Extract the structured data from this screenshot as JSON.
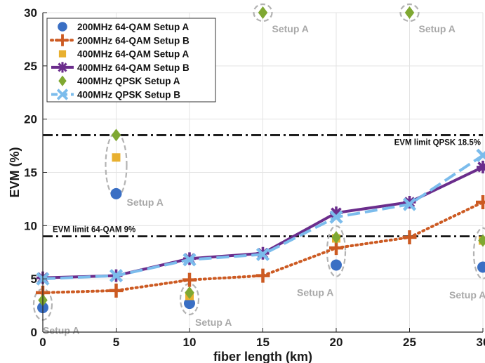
{
  "chart_data": {
    "type": "line",
    "title": "",
    "xlabel": "fiber length (km)",
    "ylabel": "EVM (%)",
    "xlim": [
      0,
      30
    ],
    "ylim": [
      0,
      30
    ],
    "xticks": [
      0,
      5,
      10,
      15,
      20,
      25,
      30
    ],
    "yticks": [
      0,
      5,
      10,
      15,
      20,
      25,
      30
    ],
    "xtick_labels": [
      "0",
      "5",
      "10",
      "15",
      "20",
      "25",
      "30"
    ],
    "ytick_labels": [
      "0",
      "5",
      "10",
      "15",
      "20",
      "25",
      "30"
    ],
    "grid": true,
    "legend_position": "top-left",
    "series": [
      {
        "name": "200MHz 64-QAM Setup A",
        "marker": "circle",
        "line": "none",
        "color": "#3a6fc4",
        "x": [
          0,
          5,
          10,
          20,
          30
        ],
        "y": [
          2.3,
          13.0,
          2.7,
          6.3,
          6.1
        ]
      },
      {
        "name": "200MHz 64-QAM Setup B",
        "marker": "plus",
        "line": "dotted",
        "color": "#cc5a22",
        "x": [
          0,
          5,
          10,
          15,
          20,
          25,
          30
        ],
        "y": [
          3.7,
          3.9,
          4.9,
          5.3,
          7.9,
          8.9,
          12.2
        ]
      },
      {
        "name": "400MHz 64-QAM Setup A",
        "marker": "square",
        "line": "none",
        "color": "#e8b030",
        "x": [
          5,
          10,
          20,
          30
        ],
        "y": [
          16.4,
          3.4,
          8.8,
          8.6
        ]
      },
      {
        "name": "400MHz 64-QAM Setup B",
        "marker": "asterisk",
        "line": "solid",
        "color": "#6b2d8c",
        "x": [
          0,
          5,
          10,
          15,
          20,
          25,
          30
        ],
        "y": [
          5.1,
          5.3,
          6.9,
          7.4,
          11.2,
          12.2,
          15.5
        ]
      },
      {
        "name": "400MHz QPSK Setup A",
        "marker": "diamond",
        "line": "none",
        "color": "#7fa832",
        "x": [
          0,
          5,
          10,
          15,
          20,
          25,
          30
        ],
        "y": [
          3.0,
          18.5,
          3.7,
          30.0,
          8.9,
          30.0,
          8.6
        ]
      },
      {
        "name": "400MHz QPSK Setup B",
        "marker": "x",
        "line": "dashed",
        "color": "#7bbcec",
        "x": [
          0,
          5,
          10,
          15,
          20,
          25,
          30
        ],
        "y": [
          5.0,
          5.3,
          6.8,
          7.3,
          10.8,
          12.0,
          16.6
        ]
      }
    ],
    "reference_lines": [
      {
        "label": "EVM limit QPSK 18.5%",
        "y": 18.5
      },
      {
        "label": "EVM limit 64-QAM 9%",
        "y": 9
      }
    ],
    "annotations": [
      {
        "text": "Setup A",
        "x": 0,
        "y": 2.6
      },
      {
        "text": "Setup A",
        "x": 5,
        "y": 15.7
      },
      {
        "text": "Setup A",
        "x": 10,
        "y": 3.1
      },
      {
        "text": "Setup A",
        "x": 15,
        "y": 30
      },
      {
        "text": "Setup A",
        "x": 20,
        "y": 7.6
      },
      {
        "text": "Setup A",
        "x": 25,
        "y": 30
      },
      {
        "text": "Setup A",
        "x": 30,
        "y": 7.4
      }
    ]
  }
}
